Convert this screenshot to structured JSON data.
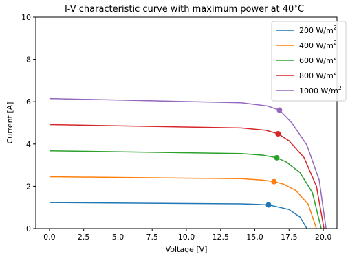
{
  "chart_data": {
    "type": "line",
    "title": "I-V characteristic curve with maximum power at 40",
    "title_degree": "∘",
    "title_unit": "C",
    "xlabel": "Voltage [V]",
    "ylabel": "Current [A]",
    "xlim": [
      -1.0,
      21.0
    ],
    "ylim": [
      0,
      10
    ],
    "xticks": [
      0.0,
      2.5,
      5.0,
      7.5,
      10.0,
      12.5,
      15.0,
      17.5,
      20.0
    ],
    "xtick_labels": [
      "0.0",
      "2.5",
      "5.0",
      "7.5",
      "10.0",
      "12.5",
      "15.0",
      "17.5",
      "20.0"
    ],
    "yticks": [
      0,
      2,
      4,
      6,
      8,
      10
    ],
    "ytick_labels": [
      "0",
      "2",
      "4",
      "6",
      "8",
      "10"
    ],
    "grid": false,
    "legend_position": "upper-right",
    "legend_unit": "W/m",
    "legend_sup": "2",
    "series": [
      {
        "name": "200",
        "color": "#1f77b4",
        "x": [
          0.0,
          14.0,
          15.0,
          16.0,
          16.5,
          17.5,
          18.3,
          18.8
        ],
        "y": [
          1.23,
          1.17,
          1.15,
          1.12,
          1.05,
          0.9,
          0.55,
          0.0
        ],
        "mpp": [
          16.0,
          1.12
        ]
      },
      {
        "name": "400",
        "color": "#ff7f0e",
        "x": [
          0.0,
          14.0,
          15.5,
          16.4,
          17.1,
          18.0,
          18.9,
          19.5
        ],
        "y": [
          2.45,
          2.36,
          2.3,
          2.22,
          2.1,
          1.8,
          1.15,
          0.0
        ],
        "mpp": [
          16.4,
          2.22
        ]
      },
      {
        "name": "600",
        "color": "#2ca02c",
        "x": [
          0.0,
          14.0,
          15.6,
          16.6,
          17.3,
          18.3,
          19.2,
          19.85
        ],
        "y": [
          3.68,
          3.55,
          3.47,
          3.35,
          3.15,
          2.65,
          1.7,
          0.0
        ],
        "mpp": [
          16.6,
          3.35
        ]
      },
      {
        "name": "800",
        "color": "#d62728",
        "x": [
          0.0,
          14.0,
          15.8,
          16.7,
          17.5,
          18.6,
          19.5,
          20.05
        ],
        "y": [
          4.92,
          4.76,
          4.65,
          4.48,
          4.15,
          3.35,
          2.0,
          0.0
        ],
        "mpp": [
          16.7,
          4.48
        ]
      },
      {
        "name": "1000",
        "color": "#9467bd",
        "x": [
          0.0,
          14.0,
          15.9,
          16.8,
          17.7,
          18.8,
          19.7,
          20.2
        ],
        "y": [
          6.15,
          5.95,
          5.8,
          5.6,
          5.0,
          3.95,
          2.3,
          0.0
        ],
        "mpp": [
          16.8,
          5.6
        ]
      }
    ]
  }
}
